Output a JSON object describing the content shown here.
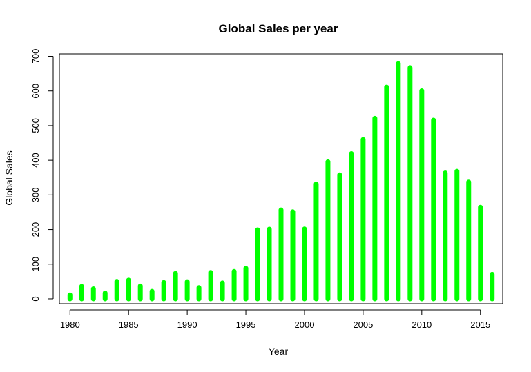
{
  "chart_data": {
    "type": "bar",
    "title": "Global Sales per year",
    "xlabel": "Year",
    "ylabel": "Global Sales",
    "x": [
      1980,
      1981,
      1982,
      1983,
      1984,
      1985,
      1986,
      1987,
      1988,
      1989,
      1990,
      1991,
      1992,
      1993,
      1994,
      1995,
      1996,
      1997,
      1998,
      1999,
      2000,
      2001,
      2002,
      2003,
      2004,
      2005,
      2006,
      2007,
      2008,
      2009,
      2010,
      2011,
      2012,
      2013,
      2014,
      2015,
      2016
    ],
    "values": [
      11.4,
      35.8,
      28.9,
      16.8,
      50.4,
      53.9,
      37.1,
      21.7,
      47.2,
      73.4,
      49.4,
      32.2,
      76.2,
      45.9,
      79.2,
      88.1,
      199.2,
      201.1,
      256.5,
      251.3,
      201.6,
      331.5,
      395.5,
      357.9,
      419.3,
      459.9,
      521.0,
      611.1,
      678.9,
      667.3,
      600.5,
      515.8,
      363.5,
      368.1,
      337.1,
      264.4,
      70.9
    ],
    "xlim": [
      1979.1,
      2016.9
    ],
    "ylim": [
      -14,
      707
    ],
    "xticks": [
      1980,
      1985,
      1990,
      1995,
      2000,
      2005,
      2010,
      2015
    ],
    "yticks": [
      0,
      100,
      200,
      300,
      400,
      500,
      600,
      700
    ],
    "bar_color": "#00ff00",
    "grid": false,
    "legend": "none"
  }
}
